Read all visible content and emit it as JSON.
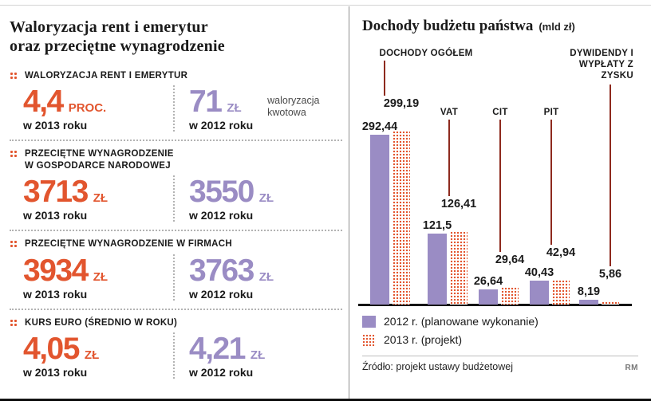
{
  "colors": {
    "orange": "#e2552e",
    "purple": "#9a8cc4",
    "leader_line": "#8e2a1e"
  },
  "left_panel": {
    "title_line1": "Waloryzacja rent i emerytur",
    "title_line2": "oraz przeciętne wynagrodzenie",
    "sections": [
      {
        "label": "WALORYZACJA RENT I EMERYTUR",
        "value_2013": "4,4",
        "unit_2013": "PROC.",
        "caption_2013": "w 2013 roku",
        "value_2012": "71",
        "unit_2012": "ZŁ",
        "caption_2012": "w 2012 roku",
        "note": "waloryzacja kwotowa"
      },
      {
        "label": "PRZECIĘTNE WYNAGRODZENIE",
        "label_line2": "W GOSPODARCE NARODOWEJ",
        "value_2013": "3713",
        "unit_2013": "ZŁ",
        "caption_2013": "w 2013 roku",
        "value_2012": "3550",
        "unit_2012": "ZŁ",
        "caption_2012": "w 2012 roku"
      },
      {
        "label": "PRZECIĘTNE WYNAGRODZENIE W FIRMACH",
        "value_2013": "3934",
        "unit_2013": "ZŁ",
        "caption_2013": "w 2013 roku",
        "value_2012": "3763",
        "unit_2012": "ZŁ",
        "caption_2012": "w 2012 roku"
      },
      {
        "label": "KURS EURO (ŚREDNIO W ROKU)",
        "value_2013": "4,05",
        "unit_2013": "ZŁ",
        "caption_2013": "w 2013 roku",
        "value_2012": "4,21",
        "unit_2012": "ZŁ",
        "caption_2012": "w 2012 roku"
      }
    ]
  },
  "right_panel": {
    "title": "Dochody budżetu państwa",
    "title_unit": "(mld zł)",
    "legend": [
      {
        "label": "2012 r. (planowane wykonanie)"
      },
      {
        "label": "2013 r. (projekt)"
      }
    ],
    "source": "Źródło: projekt ustawy budżetowej",
    "credit": "RM"
  },
  "chart_data": {
    "type": "bar",
    "title": "Dochody budżetu państwa",
    "ylabel": "mld zł",
    "categories": [
      "DOCHODY OGÓŁEM",
      "VAT",
      "CIT",
      "PIT",
      "DYWIDENDY I WYPŁATY Z ZYSKU"
    ],
    "series": [
      {
        "name": "2012 r. (planowane wykonanie)",
        "style": "solid-purple",
        "values": [
          292.44,
          121.5,
          26.64,
          40.43,
          8.19
        ],
        "value_labels": [
          "292,44",
          "121,5",
          "26,64",
          "40,43",
          "8,19"
        ]
      },
      {
        "name": "2013 r. (projekt)",
        "style": "dotted-orange",
        "values": [
          299.19,
          126.41,
          29.64,
          42.94,
          5.86
        ],
        "value_labels": [
          "299,19",
          "126,41",
          "29,64",
          "42,94",
          "5,86"
        ]
      }
    ],
    "ylim": [
      0,
      310
    ],
    "grid": false,
    "legend_position": "bottom"
  }
}
